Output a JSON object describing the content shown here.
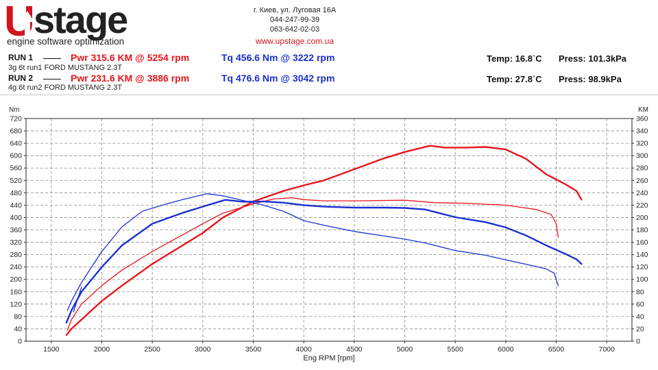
{
  "header": {
    "logo_text_u": "U",
    "logo_text_rest": "stage",
    "tagline": "engine software optimization",
    "address": "г. Киев, ул. Луговая 16А",
    "phone1": "044-247-99-39",
    "phone2": "063-642-02-03",
    "website": "www.upstage.com.ua"
  },
  "runs": [
    {
      "label": "RUN 1",
      "pwr_text": "Pwr  315.6 KM @ 5254 rpm",
      "tq_text": "Tq 456.6 Nm @ 3222 rpm",
      "subtitle": "3g 6t run1 FORD MUSTANG 2.3T",
      "temp_text": "Temp: 16.8`C",
      "press_text": "Press: 101.3kPa"
    },
    {
      "label": "RUN 2",
      "pwr_text": "Pwr  231.6 KM @ 3886 rpm",
      "tq_text": "Tq 476.6 Nm @ 3042 rpm",
      "subtitle": "4g 6t run2 FORD MUSTANG 2.3T",
      "temp_text": "Temp: 27.8`C",
      "press_text": "Press: 98.9kPa"
    }
  ],
  "colors": {
    "power": "#e8141c",
    "torque": "#1a2fd0",
    "brand": "#d0141e",
    "dark": "#111111"
  },
  "chart_data": {
    "type": "line",
    "xlabel": "Eng RPM [rpm]",
    "ylabel_left": "Nm",
    "ylabel_right": "KM",
    "xlim": [
      1250,
      7250
    ],
    "ylim_left": [
      0,
      720
    ],
    "ylim_right": [
      0,
      360
    ],
    "x_ticks": [
      1500,
      2000,
      2500,
      3000,
      3500,
      4000,
      4500,
      5000,
      5500,
      6000,
      6500,
      7000
    ],
    "y_ticks_left": [
      0,
      40,
      80,
      120,
      160,
      200,
      240,
      280,
      320,
      360,
      400,
      440,
      480,
      520,
      560,
      600,
      640,
      680,
      720
    ],
    "y_ticks_right": [
      0,
      20,
      40,
      60,
      80,
      100,
      120,
      140,
      160,
      180,
      200,
      220,
      240,
      260,
      280,
      300,
      320,
      340,
      360
    ],
    "grid": true,
    "series": [
      {
        "axis": "right",
        "color": "#e8141c",
        "width": 2.4,
        "x": [
          1650,
          1700,
          1800,
          2000,
          2200,
          2500,
          2800,
          3000,
          3200,
          3500,
          3800,
          4000,
          4200,
          4500,
          4800,
          5000,
          5250,
          5400,
          5600,
          5800,
          6000,
          6200,
          6400,
          6600,
          6700,
          6750
        ],
        "y": [
          10,
          20,
          35,
          65,
          90,
          125,
          155,
          175,
          200,
          226,
          243,
          252,
          260,
          278,
          296,
          306,
          316,
          313,
          313,
          314,
          310,
          295,
          270,
          253,
          243,
          229
        ]
      },
      {
        "axis": "right",
        "color": "#e8141c",
        "width": 1.3,
        "x": [
          1660,
          1700,
          1800,
          2000,
          2200,
          2500,
          2800,
          3000,
          3200,
          3500,
          3700,
          3886,
          4000,
          4200,
          4500,
          5000,
          5300,
          5600,
          6000,
          6300,
          6450,
          6500,
          6520
        ],
        "y": [
          18,
          35,
          60,
          90,
          115,
          145,
          172,
          190,
          207,
          222,
          230,
          232,
          229,
          227,
          227,
          228,
          224,
          223,
          220,
          213,
          205,
          190,
          168
        ]
      },
      {
        "axis": "left",
        "color": "#1a2fd0",
        "width": 2.4,
        "x": [
          1650,
          1700,
          1800,
          2000,
          2200,
          2500,
          2800,
          3000,
          3222,
          3400,
          3600,
          3800,
          4000,
          4200,
          4500,
          4800,
          5000,
          5200,
          5500,
          5800,
          6000,
          6200,
          6400,
          6600,
          6700,
          6750
        ],
        "y": [
          60,
          100,
          160,
          240,
          310,
          380,
          415,
          435,
          457,
          451,
          452,
          448,
          440,
          435,
          432,
          432,
          431,
          426,
          401,
          385,
          368,
          342,
          310,
          281,
          265,
          250
        ]
      },
      {
        "axis": "left",
        "color": "#1a2fd0",
        "width": 1.3,
        "x": [
          1660,
          1700,
          1800,
          2000,
          2200,
          2400,
          2600,
          2800,
          3042,
          3200,
          3400,
          3600,
          3800,
          4000,
          4200,
          4500,
          4800,
          5000,
          5200,
          5500,
          5800,
          6000,
          6200,
          6400,
          6480,
          6520
        ],
        "y": [
          100,
          130,
          190,
          290,
          370,
          420,
          440,
          458,
          477,
          470,
          455,
          440,
          420,
          390,
          375,
          355,
          340,
          330,
          318,
          293,
          278,
          263,
          249,
          234,
          220,
          180
        ]
      },
      {
        "axis": "left",
        "color": "#1a2fd0",
        "width": 1.3,
        "x": [
          1720,
          1760,
          1800
        ],
        "y": [
          95,
          135,
          175
        ]
      }
    ]
  }
}
